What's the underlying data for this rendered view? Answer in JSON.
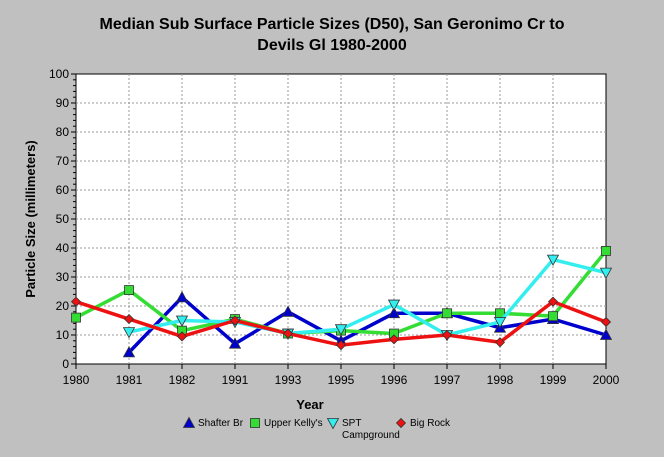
{
  "chart_data": {
    "type": "line",
    "title_lines": [
      "Median Sub Surface Particle Sizes (D50), San Geronimo Cr to",
      "Devils Gl 1980-2000"
    ],
    "xlabel": "Year",
    "ylabel": "Particle Size (millimeters)",
    "ylim": [
      0,
      100
    ],
    "y_ticks": [
      0,
      10,
      20,
      30,
      40,
      50,
      60,
      70,
      80,
      90,
      100
    ],
    "grid": true,
    "legend_position": "bottom",
    "categories": [
      "1980",
      "1981",
      "1982",
      "1991",
      "1993",
      "1995",
      "1996",
      "1997",
      "1998",
      "1999",
      "2000"
    ],
    "series": [
      {
        "name": "Shafter Br",
        "legend_lines": [
          "Shafter Br"
        ],
        "color": "#0000cc",
        "marker": "triangle-up",
        "values": [
          null,
          4,
          23,
          7,
          18,
          8,
          17.5,
          17.5,
          12.5,
          15.5,
          10
        ]
      },
      {
        "name": "Upper Kelly's",
        "legend_lines": [
          "Upper Kelly's"
        ],
        "color": "#33dd33",
        "marker": "square",
        "values": [
          16,
          25.5,
          11.5,
          15.5,
          10.5,
          11.5,
          10.5,
          17.5,
          17.5,
          16.5,
          39
        ]
      },
      {
        "name": "SPT Campground",
        "legend_lines": [
          "SPT",
          "Campground"
        ],
        "color": "#33eeee",
        "marker": "triangle-down",
        "values": [
          null,
          11,
          15,
          14.5,
          10.5,
          12,
          20.5,
          10,
          14.5,
          36,
          31.5
        ]
      },
      {
        "name": "Big Rock",
        "legend_lines": [
          "Big Rock"
        ],
        "color": "#ee1111",
        "marker": "diamond",
        "values": [
          21.5,
          15.5,
          9.5,
          15,
          10.5,
          6.5,
          8.5,
          10,
          7.5,
          21.5,
          14.5
        ]
      }
    ]
  }
}
